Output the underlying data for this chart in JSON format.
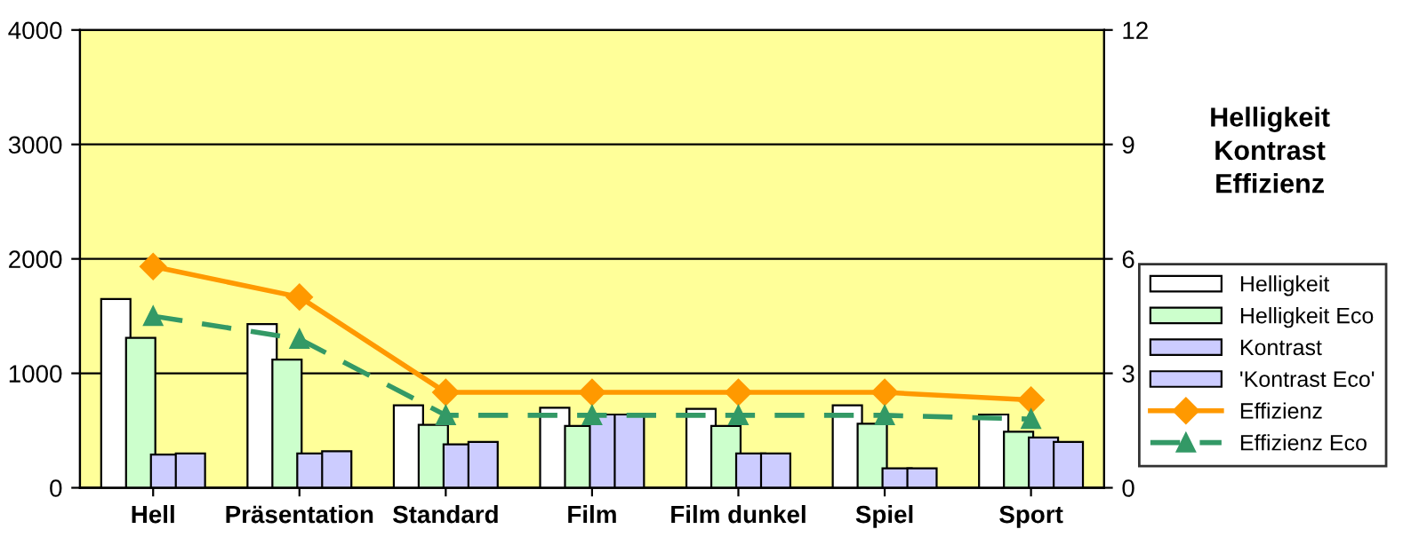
{
  "chart_data": {
    "type": "bar",
    "title": "Helligkeit\nKontrast\nEffizienz",
    "categories": [
      "Hell",
      "Präsentation",
      "Standard",
      "Film",
      "Film dunkel",
      "Spiel",
      "Sport"
    ],
    "series": [
      {
        "name": "Helligkeit",
        "color": "#ffffff",
        "values": [
          1650,
          1430,
          720,
          700,
          690,
          720,
          640
        ]
      },
      {
        "name": "Helligkeit Eco",
        "color": "#ccffcc",
        "values": [
          1310,
          1120,
          550,
          540,
          540,
          560,
          490
        ]
      },
      {
        "name": "Kontrast",
        "color": "#ccccff",
        "values": [
          290,
          300,
          380,
          640,
          300,
          170,
          440
        ]
      },
      {
        "name": "'Kontrast Eco'",
        "color": "#ccccff",
        "values": [
          300,
          320,
          400,
          640,
          300,
          170,
          400
        ]
      },
      {
        "name": "Effizienz",
        "type": "line",
        "axis": "y2",
        "color": "#ff9900",
        "marker": "diamond",
        "line_style": "solid",
        "values": [
          5.8,
          5.0,
          2.5,
          2.5,
          2.5,
          2.5,
          2.3
        ]
      },
      {
        "name": "Effizienz Eco",
        "type": "line",
        "axis": "y2",
        "color": "#339966",
        "marker": "triangle",
        "line_style": "dashed",
        "values": [
          4.5,
          3.9,
          1.9,
          1.9,
          1.9,
          1.9,
          1.8
        ]
      }
    ],
    "ylim": [
      0,
      4000
    ],
    "yticks": [
      0,
      1000,
      2000,
      3000,
      4000
    ],
    "y2lim": [
      0,
      12
    ],
    "y2ticks": [
      0,
      3,
      6,
      9,
      12
    ],
    "grid": "y",
    "legend": "right"
  }
}
